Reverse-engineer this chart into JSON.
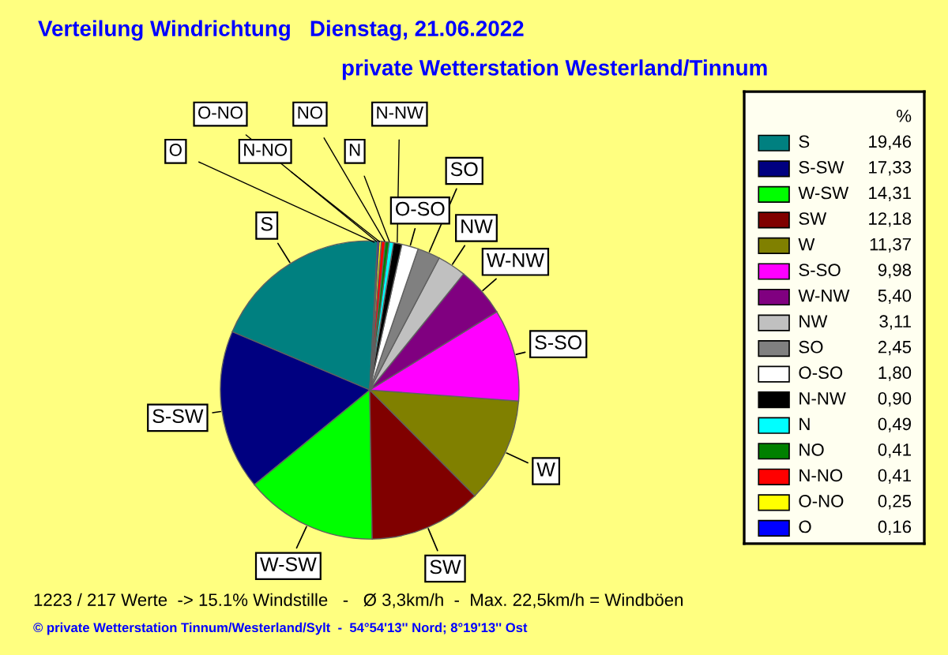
{
  "chart_data": {
    "type": "pie",
    "title": "Verteilung Windrichtung   Dienstag, 21.06.2022",
    "subtitle": "private Wetterstation Westerland/Tinnum",
    "categories": [
      "S",
      "S-SW",
      "W-SW",
      "SW",
      "W",
      "S-SO",
      "W-NW",
      "NW",
      "SO",
      "O-SO",
      "N-NW",
      "N",
      "NO",
      "N-NO",
      "O-NO",
      "O"
    ],
    "values": [
      19.46,
      17.33,
      14.31,
      12.18,
      11.37,
      9.98,
      5.4,
      3.11,
      2.45,
      1.8,
      0.9,
      0.49,
      0.41,
      0.41,
      0.25,
      0.16
    ],
    "value_labels": [
      "19,46",
      "17,33",
      "14,31",
      "12,18",
      "11,37",
      "9,98",
      "5,40",
      "3,11",
      "2,45",
      "1,80",
      "0,90",
      "0,49",
      "0,41",
      "0,41",
      "0,25",
      "0,16"
    ],
    "colors": [
      "#008080",
      "#000080",
      "#00ff00",
      "#800000",
      "#808000",
      "#ff00ff",
      "#800080",
      "#c0c0c0",
      "#808080",
      "#ffffff",
      "#000000",
      "#00ffff",
      "#008000",
      "#ff0000",
      "#ffff00",
      "#0000ff"
    ],
    "legend": "right",
    "legend_title": "%",
    "annotations": [
      "1223 / 217 Werte  -> 15.1% Windstille   -   Ø 3,3km/h  -  Max. 22,5km/h = Windböen",
      "© private Wetterstation Tinnum/Westerland/Sylt  -  54°54'13'' Nord; 8°19'13'' Ost"
    ]
  }
}
